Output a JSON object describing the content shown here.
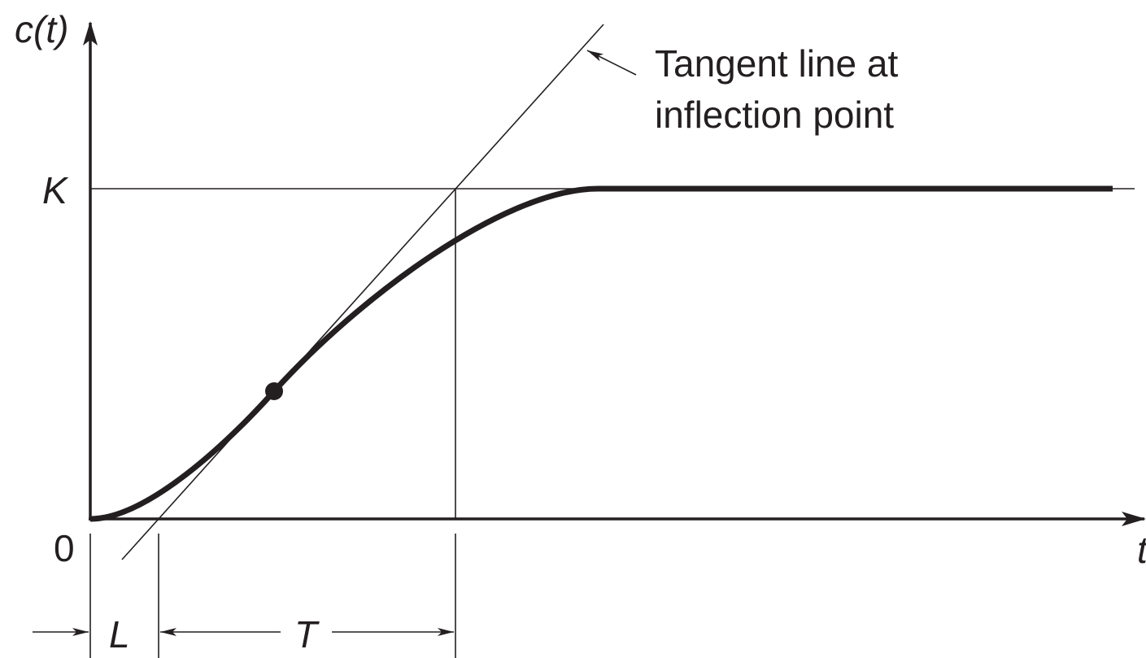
{
  "axes": {
    "y_label": "c(t)",
    "x_label": "t",
    "origin": "0",
    "level": "K"
  },
  "annotation": {
    "line1": "Tangent line at",
    "line2": "inflection point"
  },
  "dimensions": {
    "delay": "L",
    "time_constant": "T"
  }
}
